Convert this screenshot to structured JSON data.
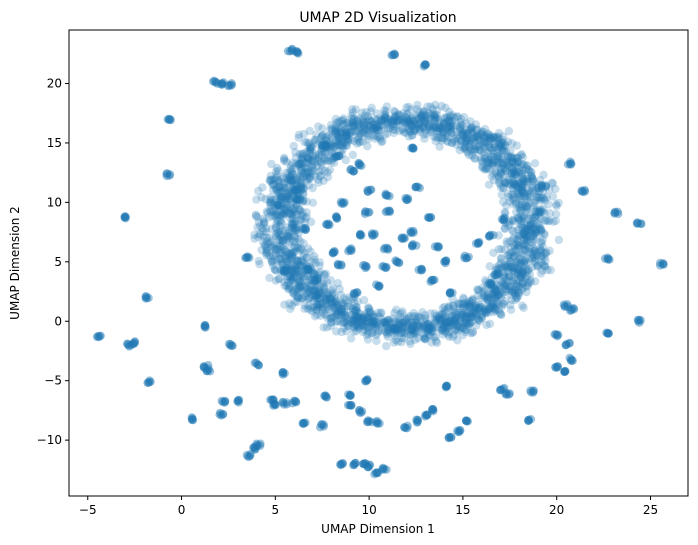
{
  "chart_data": {
    "type": "scatter",
    "title": "UMAP 2D Visualization",
    "xlabel": "UMAP Dimension 1",
    "ylabel": "UMAP Dimension 2",
    "xlim": [
      -6,
      27
    ],
    "ylim": [
      -14.7,
      24.5
    ],
    "xticks": [
      -5,
      0,
      5,
      10,
      15,
      20,
      25
    ],
    "yticks": [
      -10,
      -5,
      0,
      5,
      10,
      15,
      20
    ],
    "xtick_labels": [
      "−5",
      "0",
      "5",
      "10",
      "15",
      "20",
      "25"
    ],
    "ytick_labels": [
      "−10",
      "−5",
      "0",
      "5",
      "10",
      "15",
      "20"
    ],
    "grid": false,
    "legend": "none",
    "marker_color": "#1f77b4",
    "marker_alpha": 0.25,
    "series": [
      {
        "points": [
          [
            5.8,
            22.8
          ],
          [
            6.2,
            22.6
          ],
          [
            11.3,
            22.4
          ],
          [
            13.0,
            21.5
          ],
          [
            1.8,
            20.1
          ],
          [
            2.2,
            20.0
          ],
          [
            2.6,
            19.9
          ],
          [
            -0.7,
            17.0
          ],
          [
            -0.7,
            12.3
          ],
          [
            -3.0,
            8.7
          ],
          [
            -1.8,
            2.0
          ],
          [
            -4.4,
            -1.3
          ],
          [
            -2.8,
            -2.0
          ],
          [
            -2.5,
            -1.8
          ],
          [
            -1.7,
            -5.1
          ],
          [
            0.5,
            -8.2
          ],
          [
            1.3,
            -0.4
          ],
          [
            1.3,
            -3.8
          ],
          [
            1.4,
            -4.1
          ],
          [
            2.2,
            -6.8
          ],
          [
            2.1,
            -7.8
          ],
          [
            2.6,
            -2.0
          ],
          [
            3.0,
            -6.7
          ],
          [
            3.6,
            -11.3
          ],
          [
            3.9,
            -10.7
          ],
          [
            4.1,
            -10.4
          ],
          [
            4.0,
            -3.6
          ],
          [
            4.8,
            -6.6
          ],
          [
            5.0,
            -7.1
          ],
          [
            5.5,
            -6.9
          ],
          [
            6.0,
            -6.8
          ],
          [
            5.5,
            -4.4
          ],
          [
            6.5,
            -8.6
          ],
          [
            7.5,
            -8.8
          ],
          [
            7.7,
            -6.3
          ],
          [
            8.5,
            -12.0
          ],
          [
            9.2,
            -12.0
          ],
          [
            9.8,
            -11.9
          ],
          [
            10.0,
            -12.2
          ],
          [
            10.4,
            -12.8
          ],
          [
            10.8,
            -12.4
          ],
          [
            9.0,
            -6.2
          ],
          [
            9.0,
            -7.1
          ],
          [
            9.5,
            -7.6
          ],
          [
            10.0,
            -8.4
          ],
          [
            10.5,
            -8.5
          ],
          [
            9.9,
            -5.0
          ],
          [
            12.0,
            -8.9
          ],
          [
            12.6,
            -8.4
          ],
          [
            13.0,
            -7.9
          ],
          [
            13.4,
            -7.5
          ],
          [
            14.1,
            -5.5
          ],
          [
            14.3,
            -9.7
          ],
          [
            14.8,
            -9.2
          ],
          [
            15.2,
            -8.3
          ],
          [
            17.1,
            -5.7
          ],
          [
            17.4,
            -6.1
          ],
          [
            18.7,
            -5.9
          ],
          [
            18.5,
            -8.3
          ],
          [
            20.0,
            -3.8
          ],
          [
            20.4,
            -4.2
          ],
          [
            20.8,
            -3.2
          ],
          [
            20.0,
            -1.2
          ],
          [
            20.6,
            -1.9
          ],
          [
            22.7,
            -1.0
          ],
          [
            24.4,
            0.0
          ],
          [
            25.6,
            4.8
          ],
          [
            24.4,
            8.2
          ],
          [
            23.2,
            9.1
          ],
          [
            22.7,
            5.3
          ],
          [
            21.4,
            11.0
          ],
          [
            20.7,
            13.3
          ],
          [
            19.3,
            11.4
          ],
          [
            20.5,
            1.3
          ],
          [
            20.8,
            1.0
          ],
          [
            3.5,
            5.4
          ],
          [
            5.2,
            9.7
          ],
          [
            7.8,
            8.2
          ],
          [
            6.5,
            7.8
          ],
          [
            9.0,
            6.0
          ],
          [
            8.4,
            4.8
          ],
          [
            10.2,
            7.3
          ],
          [
            11.8,
            7.0
          ],
          [
            12.4,
            6.4
          ],
          [
            13.2,
            8.8
          ],
          [
            12.7,
            4.4
          ],
          [
            13.4,
            3.4
          ],
          [
            14.0,
            5.0
          ],
          [
            15.2,
            5.4
          ],
          [
            15.8,
            6.6
          ],
          [
            14.4,
            2.4
          ],
          [
            9.8,
            4.6
          ],
          [
            10.5,
            3.0
          ],
          [
            8.6,
            10.0
          ],
          [
            9.6,
            7.3
          ],
          [
            10.0,
            11.0
          ],
          [
            11.0,
            10.6
          ],
          [
            12.0,
            10.3
          ],
          [
            12.6,
            11.3
          ],
          [
            12.3,
            14.6
          ],
          [
            6.1,
            11.0
          ],
          [
            6.2,
            10.3
          ],
          [
            7.6,
            14.8
          ],
          [
            8.3,
            13.8
          ],
          [
            9.1,
            12.7
          ],
          [
            9.5,
            13.2
          ],
          [
            9.3,
            2.4
          ],
          [
            10.8,
            4.5
          ],
          [
            11.5,
            5.0
          ],
          [
            16.5,
            7.2
          ],
          [
            17.2,
            8.6
          ],
          [
            5.5,
            4.2
          ],
          [
            6.7,
            4.3
          ],
          [
            7.2,
            3.5
          ],
          [
            8.1,
            5.8
          ],
          [
            10.9,
            6.1
          ],
          [
            13.6,
            6.2
          ],
          [
            12.3,
            7.5
          ],
          [
            11.0,
            9.2
          ],
          [
            9.9,
            9.1
          ],
          [
            8.3,
            8.7
          ],
          [
            16.4,
            3.1
          ],
          [
            16.8,
            4.0
          ]
        ],
        "ring": {
          "center": [
            12.0,
            8.1
          ],
          "radius_x": 6.7,
          "radius_y": 8.7,
          "band_width": 1.3
        }
      }
    ]
  }
}
